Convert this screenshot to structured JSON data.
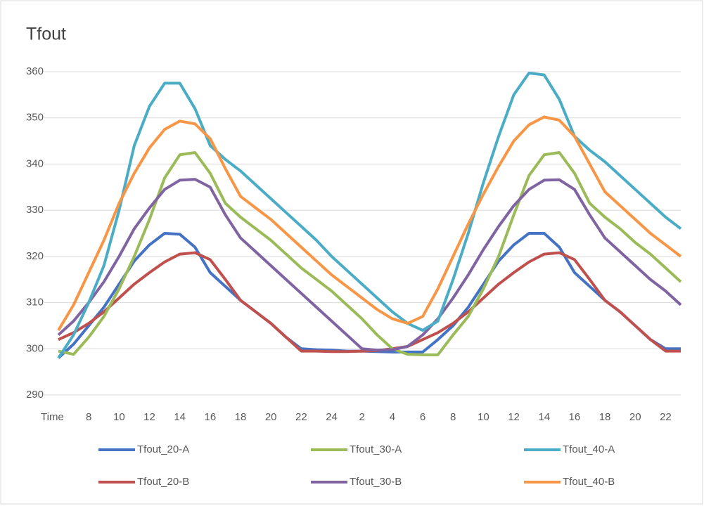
{
  "chart_data": {
    "type": "line",
    "title": "Tfout",
    "categories": [
      "Time",
      null,
      "8",
      null,
      "10",
      null,
      "12",
      null,
      "14",
      null,
      "16",
      null,
      "18",
      null,
      "20",
      null,
      "22",
      null,
      "24",
      null,
      "2",
      null,
      "4",
      null,
      "6",
      null,
      "8",
      null,
      "10",
      null,
      "12",
      null,
      "14",
      null,
      "16",
      null,
      "18",
      null,
      "20",
      null,
      "22",
      null
    ],
    "series": [
      {
        "name": "Tfout_20-A",
        "color": "#4472c4",
        "values": [
          298,
          301,
          305,
          309,
          314,
          319,
          322.5,
          325,
          324.8,
          322,
          316.5,
          313.5,
          310.5,
          308,
          305.5,
          302.5,
          300,
          299.8,
          299.7,
          299.5,
          299.5,
          299.4,
          299.3,
          299.3,
          299.3,
          302,
          305,
          309,
          314,
          319,
          322.5,
          325,
          325,
          322,
          316.5,
          313.5,
          310.5,
          308,
          305,
          302,
          300,
          300
        ]
      },
      {
        "name": "Tfout_20-B",
        "color": "#c0504d",
        "values": [
          302,
          303.5,
          305.5,
          308,
          311,
          314,
          316.5,
          318.8,
          320.5,
          320.8,
          319.3,
          315,
          310.5,
          308,
          305.5,
          302.5,
          299.5,
          299.5,
          299.4,
          299.4,
          299.5,
          299.6,
          300,
          300.5,
          302,
          303.5,
          305.5,
          308,
          311,
          314,
          316.5,
          318.8,
          320.5,
          320.8,
          319.3,
          315,
          310.5,
          308,
          305,
          302,
          299.5,
          299.5
        ]
      },
      {
        "name": "Tfout_30-A",
        "color": "#9bbb59",
        "values": [
          299.5,
          298.8,
          302.5,
          307,
          313,
          320,
          328,
          337,
          342,
          342.5,
          338,
          331.5,
          328.5,
          326,
          323.5,
          320.5,
          317.5,
          315,
          312.5,
          309.5,
          306.5,
          303,
          300,
          298.8,
          298.7,
          298.7,
          303,
          307,
          313,
          320,
          329,
          337.5,
          342,
          342.5,
          338,
          331.5,
          328.5,
          326,
          323,
          320.5,
          317.5,
          314.5
        ]
      },
      {
        "name": "Tfout_30-B",
        "color": "#8064a2",
        "values": [
          303,
          306,
          310,
          314.5,
          320,
          326,
          330.5,
          334.5,
          336.5,
          336.7,
          335,
          329,
          324,
          321,
          318,
          315,
          312,
          309,
          306,
          303,
          300,
          299.7,
          299.8,
          300.5,
          303,
          306.5,
          311,
          316,
          321.5,
          326.5,
          331,
          334.5,
          336.5,
          336.6,
          334.5,
          329,
          324,
          321,
          318,
          315,
          312.5,
          309.5
        ]
      },
      {
        "name": "Tfout_40-A",
        "color": "#4bacc6",
        "values": [
          298,
          303,
          310,
          318,
          330,
          344,
          352.5,
          357.5,
          357.5,
          352,
          344,
          341,
          338.5,
          335.5,
          332.5,
          329.5,
          326.5,
          323.5,
          320,
          317,
          314,
          311,
          308,
          305.5,
          304,
          306,
          315,
          325,
          336,
          346,
          355,
          359.7,
          359.3,
          354,
          346,
          343,
          340.5,
          337.5,
          334.5,
          331.5,
          328.5,
          326
        ]
      },
      {
        "name": "Tfout_40-B",
        "color": "#f79646",
        "values": [
          304,
          309.5,
          316.5,
          323.5,
          331.5,
          338,
          343.5,
          347.5,
          349.3,
          348.7,
          345.5,
          339,
          333,
          330.5,
          328,
          325,
          322,
          319,
          316,
          313.5,
          311,
          308.5,
          306.5,
          305.5,
          307,
          313,
          320,
          327,
          333.5,
          339.5,
          345,
          348.5,
          350.2,
          349.5,
          346,
          340,
          334,
          331,
          328,
          325,
          322.5,
          320
        ]
      }
    ],
    "ylim": [
      290,
      360
    ],
    "yticks": [
      290,
      300,
      310,
      320,
      330,
      340,
      350,
      360
    ],
    "grid": true,
    "legend": "bottom"
  }
}
